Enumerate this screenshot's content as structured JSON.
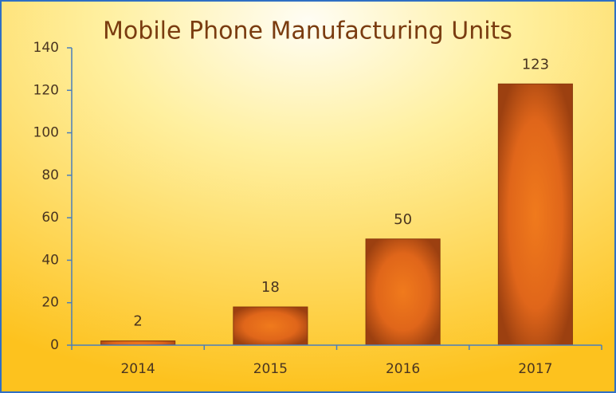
{
  "chart_data": {
    "type": "bar",
    "title": "Mobile Phone Manufacturing Units",
    "categories": [
      "2014",
      "2015",
      "2016",
      "2017"
    ],
    "values": [
      2,
      18,
      50,
      123
    ],
    "color": "#e8671a",
    "ylim": [
      0,
      140
    ],
    "yticks": [
      0,
      20,
      40,
      60,
      80,
      100,
      120,
      140
    ],
    "grid": false
  }
}
